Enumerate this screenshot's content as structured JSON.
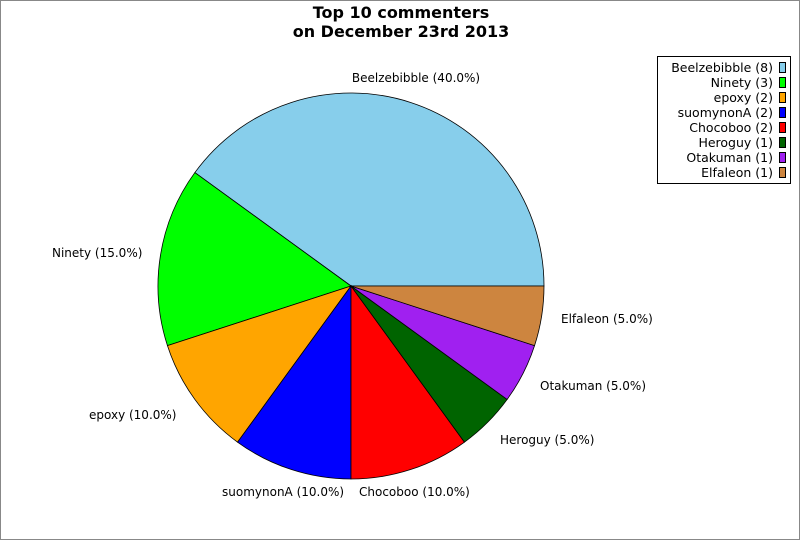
{
  "chart_data": {
    "type": "pie",
    "title_lines": [
      "Top 10 commenters",
      "on December 23rd 2013"
    ],
    "slices": [
      {
        "name": "Beelzebibble",
        "count": 8,
        "percent": 40.0,
        "label": "Beelzebibble (40.0%)",
        "legend": "Beelzebibble (8)",
        "color": "#87ceeb"
      },
      {
        "name": "Ninety",
        "count": 3,
        "percent": 15.0,
        "label": "Ninety (15.0%)",
        "legend": "Ninety (3)",
        "color": "#00ff00"
      },
      {
        "name": "epoxy",
        "count": 2,
        "percent": 10.0,
        "label": "epoxy (10.0%)",
        "legend": "epoxy (2)",
        "color": "#ffa500"
      },
      {
        "name": "suomynonA",
        "count": 2,
        "percent": 10.0,
        "label": "suomynonA (10.0%)",
        "legend": "suomynonA (2)",
        "color": "#0000ff"
      },
      {
        "name": "Chocoboo",
        "count": 2,
        "percent": 10.0,
        "label": "Chocoboo (10.0%)",
        "legend": "Chocoboo (2)",
        "color": "#ff0000"
      },
      {
        "name": "Heroguy",
        "count": 1,
        "percent": 5.0,
        "label": "Heroguy (5.0%)",
        "legend": "Heroguy (1)",
        "color": "#006400"
      },
      {
        "name": "Otakuman",
        "count": 1,
        "percent": 5.0,
        "label": "Otakuman (5.0%)",
        "legend": "Otakuman (1)",
        "color": "#a020f0"
      },
      {
        "name": "Elfaleon",
        "count": 1,
        "percent": 5.0,
        "label": "Elfaleon (5.0%)",
        "legend": "Elfaleon (1)",
        "color": "#cd853f"
      }
    ],
    "start_angle_deg": 0,
    "direction": "counterclockwise",
    "legend_position": "top-right"
  }
}
